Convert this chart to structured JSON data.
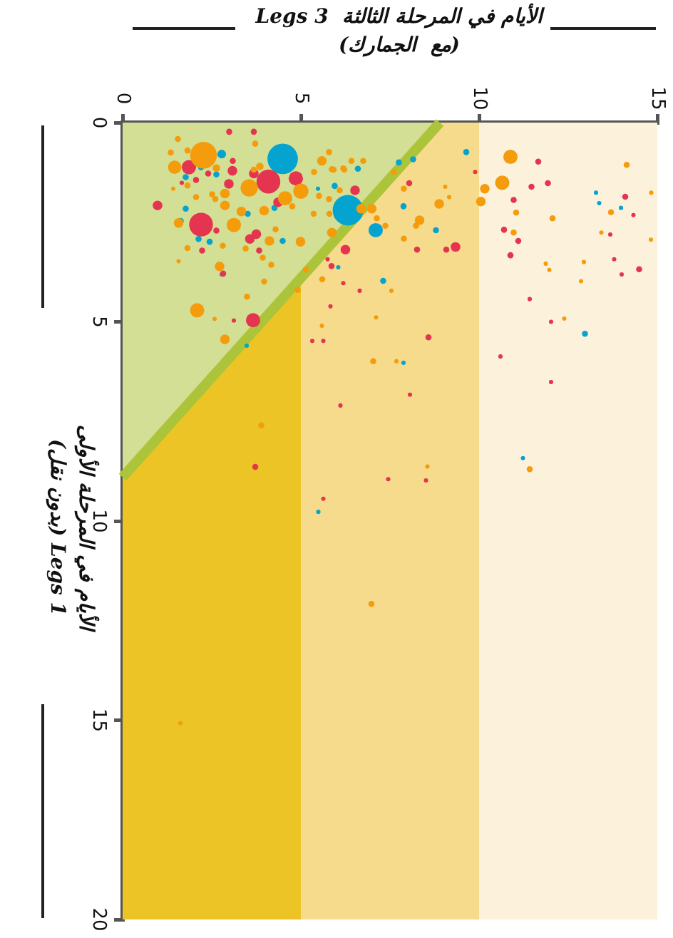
{
  "chart_data": {
    "type": "bubble",
    "xlabel": "الأيام في المرحلة الثالثة  Legs 3\n(مع  الجمارك)",
    "ylabel": "الأيام في المرحلة الأولى\nLegs 1 (بدون نقل)",
    "xlim": [
      0,
      15
    ],
    "xticks": [
      0,
      5,
      10,
      15
    ],
    "ylim": [
      20,
      0
    ],
    "yticks": [
      0,
      5,
      10,
      15,
      20
    ],
    "bands": [
      {
        "axis": "x",
        "from": 0,
        "to": 5,
        "color": "#ecc425"
      },
      {
        "axis": "x",
        "from": 5,
        "to": 10,
        "color": "#f5db8b"
      },
      {
        "axis": "x",
        "from": 10,
        "to": 15,
        "color": "#fcf2dc"
      }
    ],
    "series": [
      {
        "type": "bubble",
        "color": "#f59c0c",
        "x": [
          2.27,
          5.0,
          3.55,
          1.46,
          3.12,
          2.09,
          1.57,
          4.56,
          2.87,
          2.87,
          3.33,
          3.97,
          4.12,
          4.99,
          2.72,
          5.59,
          1.55,
          5.87,
          2.87,
          6.99,
          6.69,
          3.97,
          2.63,
          10.88,
          10.65,
          10.16,
          10.05,
          11.04,
          10.97,
          12.06,
          14.14,
          13.7,
          12.86,
          12.94,
          11.87,
          11.97,
          13.43,
          14.83,
          14.82,
          12.39,
          11.42,
          8.88,
          8.33,
          8.23,
          7.89,
          7.89,
          7.61,
          9.05,
          9.16,
          7.54,
          7.11,
          7.03,
          7.68,
          8.55,
          5.59,
          7.37,
          7.13,
          5.79,
          6.42,
          6.75,
          6.19,
          5.87,
          5.37,
          6.09,
          5.51,
          5.79,
          5.8,
          4.91,
          5.14,
          5.6,
          3.89,
          1.62,
          6.98,
          3.72,
          1.35,
          1.82,
          1.82,
          1.42,
          2.06,
          2.51,
          2.6,
          1.82,
          1.57,
          2.81,
          3.45,
          3.93,
          4.17,
          3.49,
          2.58,
          3.68,
          3.85,
          4.76,
          4.29,
          5.92,
          6.22,
          5.36
        ],
        "values": [
          0.82,
          1.72,
          1.64,
          1.12,
          2.57,
          4.71,
          2.52,
          1.9,
          1.78,
          2.08,
          2.23,
          2.21,
          2.97,
          2.99,
          3.61,
          0.96,
          0.41,
          2.76,
          5.44,
          2.16,
          2.16,
          3.99,
          1.14,
          0.86,
          1.51,
          1.66,
          1.98,
          2.26,
          2.76,
          2.4,
          1.06,
          2.25,
          3.98,
          3.5,
          3.54,
          3.7,
          2.76,
          1.76,
          2.94,
          4.92,
          8.7,
          2.04,
          2.45,
          2.59,
          2.91,
          1.66,
          1.24,
          1.61,
          1.87,
          4.22,
          4.89,
          5.99,
          5.99,
          8.63,
          5.1,
          2.59,
          2.4,
          0.74,
          0.96,
          0.96,
          1.15,
          1.17,
          1.24,
          1.7,
          1.84,
          1.92,
          2.29,
          4.2,
          3.69,
          3.93,
          7.6,
          15.07,
          12.08,
          0.53,
          0.75,
          0.7,
          1.58,
          1.66,
          1.87,
          1.8,
          1.92,
          3.15,
          3.48,
          3.09,
          3.16,
          3.39,
          3.57,
          4.37,
          4.93,
          1.18,
          1.1,
          2.1,
          2.68,
          1.18,
          1.18,
          2.29
        ],
        "sizes": [
          0.77,
          0.25,
          0.32,
          0.19,
          0.22,
          0.22,
          0.1,
          0.22,
          0.1,
          0.1,
          0.1,
          0.1,
          0.1,
          0.1,
          0.1,
          0.1,
          0.04,
          0.1,
          0.1,
          0.1,
          0.1,
          0.04,
          0.06,
          0.22,
          0.22,
          0.1,
          0.1,
          0.04,
          0.04,
          0.04,
          0.04,
          0.04,
          0.02,
          0.02,
          0.02,
          0.02,
          0.02,
          0.02,
          0.02,
          0.02,
          0.04,
          0.1,
          0.1,
          0.04,
          0.04,
          0.04,
          0.04,
          0.02,
          0.02,
          0.02,
          0.02,
          0.04,
          0.02,
          0.02,
          0.02,
          0.04,
          0.04,
          0.04,
          0.04,
          0.04,
          0.04,
          0.04,
          0.04,
          0.04,
          0.04,
          0.04,
          0.04,
          0.04,
          0.04,
          0.04,
          0.04,
          0.02,
          0.04,
          0.04,
          0.04,
          0.04,
          0.04,
          0.02,
          0.04,
          0.04,
          0.04,
          0.04,
          0.02,
          0.04,
          0.04,
          0.04,
          0.04,
          0.04,
          0.02,
          0.04,
          0.06,
          0.04,
          0.04,
          0.04,
          0.04,
          0.04
        ]
      },
      {
        "type": "bubble",
        "color": "#e5344f",
        "x": [
          2.2,
          4.09,
          1.86,
          4.86,
          3.66,
          0.98,
          4.36,
          3.08,
          2.98,
          3.57,
          3.75,
          6.25,
          3.68,
          6.52,
          2.82,
          11.66,
          11.47,
          11.93,
          10.97,
          10.7,
          11.1,
          10.88,
          14.1,
          14.49,
          14.0,
          13.79,
          13.68,
          14.33,
          10.6,
          12.02,
          12.02,
          11.42,
          9.34,
          9.08,
          8.26,
          8.04,
          9.89,
          5.86,
          6.19,
          6.65,
          8.58,
          5.32,
          5.63,
          6.11,
          8.51,
          5.83,
          3.72,
          7.45,
          5.63,
          8.06,
          2.99,
          3.09,
          2.4,
          2.06,
          1.66,
          2.63,
          2.23,
          3.83,
          3.12,
          3.68,
          5.75
        ],
        "values": [
          2.56,
          1.48,
          1.12,
          1.4,
          4.96,
          2.08,
          2.0,
          1.21,
          1.54,
          2.92,
          2.8,
          3.19,
          0.23,
          1.7,
          3.79,
          0.98,
          1.61,
          1.52,
          1.94,
          2.69,
          2.97,
          3.33,
          1.86,
          3.68,
          3.81,
          3.43,
          2.81,
          2.32,
          5.87,
          6.51,
          5.0,
          4.43,
          3.12,
          3.19,
          3.19,
          1.52,
          1.24,
          3.6,
          4.03,
          4.22,
          5.39,
          5.48,
          5.48,
          7.1,
          8.98,
          4.61,
          8.64,
          8.95,
          9.44,
          6.83,
          0.23,
          0.96,
          1.28,
          1.44,
          1.51,
          2.71,
          3.21,
          3.21,
          4.97,
          1.28,
          3.43
        ],
        "sizes": [
          0.61,
          0.61,
          0.22,
          0.22,
          0.22,
          0.1,
          0.1,
          0.1,
          0.1,
          0.1,
          0.1,
          0.1,
          0.04,
          0.1,
          0.04,
          0.04,
          0.04,
          0.04,
          0.04,
          0.04,
          0.04,
          0.04,
          0.04,
          0.04,
          0.02,
          0.02,
          0.02,
          0.02,
          0.02,
          0.02,
          0.02,
          0.02,
          0.1,
          0.04,
          0.04,
          0.04,
          0.02,
          0.04,
          0.02,
          0.02,
          0.04,
          0.02,
          0.02,
          0.02,
          0.02,
          0.02,
          0.04,
          0.02,
          0.02,
          0.02,
          0.04,
          0.04,
          0.04,
          0.04,
          0.02,
          0.04,
          0.04,
          0.04,
          0.02,
          0.1,
          0.02
        ]
      },
      {
        "type": "bubble",
        "color": "#05a3d0",
        "x": [
          4.49,
          6.32,
          7.1,
          2.78,
          3.48,
          13.28,
          13.37,
          13.98,
          12.97,
          11.23,
          8.79,
          7.88,
          7.75,
          8.15,
          9.64,
          7.31,
          7.88,
          6.6,
          5.95,
          5.48,
          6.05,
          5.49,
          2.2,
          2.63,
          1.77,
          1.77,
          1.63,
          2.13,
          2.44,
          2.78,
          4.26,
          4.49,
          3.51
        ],
        "values": [
          0.91,
          2.2,
          2.7,
          0.79,
          5.6,
          1.76,
          2.02,
          2.14,
          5.3,
          8.42,
          2.7,
          2.1,
          1.0,
          0.92,
          0.74,
          3.97,
          6.03,
          1.16,
          1.59,
          1.66,
          3.63,
          9.77,
          1.12,
          1.3,
          1.37,
          2.16,
          2.47,
          2.92,
          2.99,
          3.81,
          2.14,
          2.97,
          2.29
        ],
        "sizes": [
          1,
          1,
          0.22,
          0.08,
          0.02,
          0.02,
          0.02,
          0.02,
          0.04,
          0.02,
          0.04,
          0.04,
          0.04,
          0.04,
          0.04,
          0.04,
          0.02,
          0.04,
          0.04,
          0.02,
          0.02,
          0.02,
          0.04,
          0.04,
          0.04,
          0.04,
          0.04,
          0.04,
          0.04,
          0.02,
          0.04,
          0.04,
          0.04
        ]
      },
      {
        "type": "area",
        "color": "#d2df94",
        "x": [
          0,
          8.9
        ],
        "values": [
          8.9,
          0
        ]
      }
    ]
  }
}
